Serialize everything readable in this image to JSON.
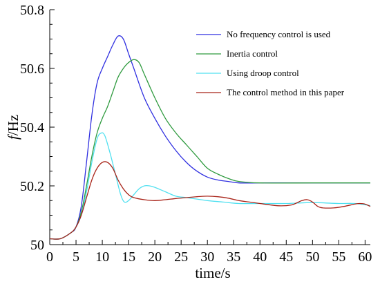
{
  "chart_data": {
    "type": "line",
    "title": "",
    "xlabel": "time/s",
    "ylabel_italic": "f",
    "ylabel_rest": "/Hz",
    "xlim": [
      0,
      61
    ],
    "ylim": [
      50.0,
      50.8
    ],
    "x_ticks": [
      0,
      5,
      10,
      15,
      20,
      25,
      30,
      35,
      40,
      45,
      50,
      55,
      60
    ],
    "y_ticks": [
      50.0,
      50.2,
      50.4,
      50.6,
      50.8
    ],
    "y_tick_labels": [
      "50",
      "50.2",
      "50.4",
      "50.6",
      "50.8"
    ],
    "grid": false,
    "legend_position": "top-right",
    "series": [
      {
        "name": "No frequency control is used",
        "color": "#2f2fe0",
        "points": [
          [
            0,
            50.02
          ],
          [
            2,
            50.02
          ],
          [
            4,
            50.04
          ],
          [
            5,
            50.06
          ],
          [
            6,
            50.13
          ],
          [
            7,
            50.28
          ],
          [
            8,
            50.44
          ],
          [
            9,
            50.55
          ],
          [
            10,
            50.6
          ],
          [
            11,
            50.64
          ],
          [
            12,
            50.68
          ],
          [
            13,
            50.71
          ],
          [
            14,
            50.7
          ],
          [
            15,
            50.65
          ],
          [
            16,
            50.6
          ],
          [
            18,
            50.5
          ],
          [
            20,
            50.43
          ],
          [
            22,
            50.37
          ],
          [
            24,
            50.32
          ],
          [
            26,
            50.28
          ],
          [
            28,
            50.25
          ],
          [
            30,
            50.23
          ],
          [
            32,
            50.22
          ],
          [
            34,
            50.215
          ],
          [
            36,
            50.21
          ],
          [
            40,
            50.21
          ],
          [
            45,
            50.21
          ],
          [
            50,
            50.21
          ],
          [
            55,
            50.21
          ],
          [
            61,
            50.21
          ]
        ]
      },
      {
        "name": "Inertia control",
        "color": "#2e9a3e",
        "points": [
          [
            0,
            50.02
          ],
          [
            2,
            50.02
          ],
          [
            4,
            50.04
          ],
          [
            5,
            50.06
          ],
          [
            6,
            50.11
          ],
          [
            7,
            50.2
          ],
          [
            8,
            50.3
          ],
          [
            9,
            50.38
          ],
          [
            10,
            50.43
          ],
          [
            11,
            50.47
          ],
          [
            12,
            50.52
          ],
          [
            13,
            50.57
          ],
          [
            14,
            50.6
          ],
          [
            15,
            50.62
          ],
          [
            16,
            50.63
          ],
          [
            17,
            50.62
          ],
          [
            18,
            50.58
          ],
          [
            20,
            50.5
          ],
          [
            22,
            50.43
          ],
          [
            24,
            50.38
          ],
          [
            26,
            50.34
          ],
          [
            28,
            50.3
          ],
          [
            30,
            50.26
          ],
          [
            32,
            50.24
          ],
          [
            34,
            50.225
          ],
          [
            36,
            50.215
          ],
          [
            40,
            50.21
          ],
          [
            50,
            50.21
          ],
          [
            61,
            50.21
          ]
        ]
      },
      {
        "name": "Using droop control",
        "color": "#50e0f0",
        "points": [
          [
            0,
            50.02
          ],
          [
            2,
            50.02
          ],
          [
            4,
            50.04
          ],
          [
            5,
            50.06
          ],
          [
            6,
            50.1
          ],
          [
            7,
            50.18
          ],
          [
            8,
            50.28
          ],
          [
            9,
            50.36
          ],
          [
            9.8,
            50.38
          ],
          [
            10.5,
            50.37
          ],
          [
            11.5,
            50.31
          ],
          [
            12.5,
            50.24
          ],
          [
            13.5,
            50.17
          ],
          [
            14.2,
            50.145
          ],
          [
            15,
            50.15
          ],
          [
            16,
            50.17
          ],
          [
            17,
            50.19
          ],
          [
            18,
            50.2
          ],
          [
            19,
            50.2
          ],
          [
            20,
            50.195
          ],
          [
            22,
            50.18
          ],
          [
            24,
            50.165
          ],
          [
            26,
            50.16
          ],
          [
            28,
            50.155
          ],
          [
            30,
            50.15
          ],
          [
            33,
            50.145
          ],
          [
            36,
            50.14
          ],
          [
            40,
            50.14
          ],
          [
            45,
            50.14
          ],
          [
            50,
            50.143
          ],
          [
            55,
            50.14
          ],
          [
            58,
            50.14
          ],
          [
            61,
            50.133
          ]
        ]
      },
      {
        "name": "The control method in this paper",
        "color": "#a82318",
        "points": [
          [
            0,
            50.02
          ],
          [
            2,
            50.02
          ],
          [
            4,
            50.04
          ],
          [
            5,
            50.06
          ],
          [
            6,
            50.1
          ],
          [
            7,
            50.16
          ],
          [
            8,
            50.22
          ],
          [
            9,
            50.26
          ],
          [
            10,
            50.28
          ],
          [
            11,
            50.28
          ],
          [
            12,
            50.26
          ],
          [
            13,
            50.22
          ],
          [
            14,
            50.19
          ],
          [
            15,
            50.17
          ],
          [
            16,
            50.16
          ],
          [
            18,
            50.153
          ],
          [
            20,
            50.15
          ],
          [
            22,
            50.153
          ],
          [
            24,
            50.157
          ],
          [
            26,
            50.16
          ],
          [
            28,
            50.163
          ],
          [
            30,
            50.165
          ],
          [
            32,
            50.163
          ],
          [
            34,
            50.158
          ],
          [
            36,
            50.15
          ],
          [
            38,
            50.145
          ],
          [
            40,
            50.14
          ],
          [
            42,
            50.135
          ],
          [
            44,
            50.132
          ],
          [
            46,
            50.135
          ],
          [
            47,
            50.142
          ],
          [
            48,
            50.15
          ],
          [
            49,
            50.153
          ],
          [
            50,
            50.145
          ],
          [
            51,
            50.13
          ],
          [
            52,
            50.125
          ],
          [
            54,
            50.125
          ],
          [
            56,
            50.13
          ],
          [
            58,
            50.138
          ],
          [
            59,
            50.14
          ],
          [
            60,
            50.138
          ],
          [
            61,
            50.13
          ]
        ]
      }
    ]
  }
}
